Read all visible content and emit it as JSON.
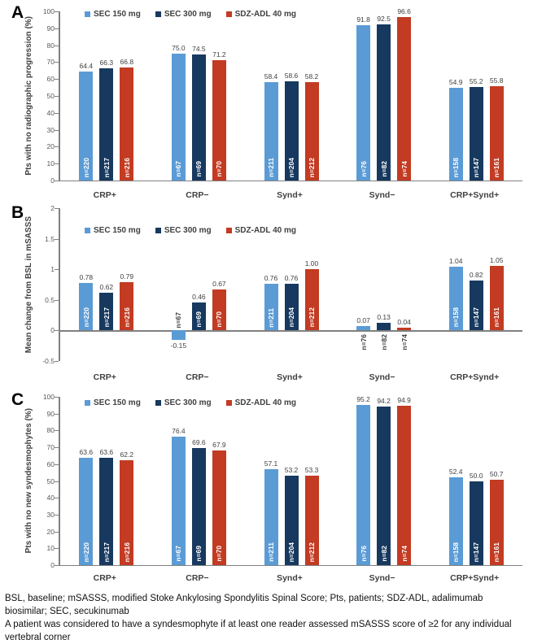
{
  "colors": {
    "sec150": "#5B9BD5",
    "sec300": "#17395F",
    "sdzadl": "#C23B22",
    "axis": "#808080",
    "label_text": "#404040",
    "tick_text": "#595959",
    "n_text_inside": "#FFFFFF"
  },
  "legend_labels": [
    "SEC 150 mg",
    "SEC 300 mg",
    "SDZ-ADL 40 mg"
  ],
  "n_labels": [
    [
      "n=220",
      "n=217",
      "n=216"
    ],
    [
      "n=67",
      "n=69",
      "n=70"
    ],
    [
      "n=211",
      "n=204",
      "n=212"
    ],
    [
      "n=76",
      "n=82",
      "n=74"
    ],
    [
      "n=158",
      "n=147",
      "n=161"
    ]
  ],
  "chart_data": [
    {
      "panel_label": "A",
      "type": "bar",
      "ylabel": "Pts with no radiographic progression (%)",
      "ylim": [
        0,
        100
      ],
      "yticks": [
        "100",
        "90",
        "80",
        "70",
        "60",
        "50",
        "40",
        "30",
        "20",
        "10",
        "0"
      ],
      "grid": false,
      "legend_position": "top-left-inside",
      "categories": [
        "CRP+",
        "CRP−",
        "Synd+",
        "Synd−",
        "CRP+Synd+"
      ],
      "series": [
        {
          "name": "SEC 150 mg",
          "color_key": "sec150",
          "values": [
            64.4,
            75.0,
            58.4,
            91.8,
            54.9
          ]
        },
        {
          "name": "SEC 300 mg",
          "color_key": "sec300",
          "values": [
            66.3,
            74.5,
            58.6,
            92.5,
            55.2
          ]
        },
        {
          "name": "SDZ-ADL 40 mg",
          "color_key": "sdzadl",
          "values": [
            66.8,
            71.2,
            58.2,
            96.6,
            55.8
          ]
        }
      ]
    },
    {
      "panel_label": "B",
      "type": "bar",
      "ylabel": "Mean change from BSL in mSASSS",
      "ylim": [
        -0.5,
        2
      ],
      "yticks": [
        "2",
        "1.5",
        "1",
        "0.5",
        "0",
        "-0.5"
      ],
      "grid": false,
      "legend_position": "top-left-inside",
      "categories": [
        "CRP+",
        "CRP−",
        "Synd+",
        "Synd−",
        "CRP+Synd+"
      ],
      "series": [
        {
          "name": "SEC 150 mg",
          "color_key": "sec150",
          "values": [
            0.78,
            -0.15,
            0.76,
            0.07,
            1.04
          ]
        },
        {
          "name": "SEC 300 mg",
          "color_key": "sec300",
          "values": [
            0.62,
            0.46,
            0.76,
            0.13,
            0.82
          ]
        },
        {
          "name": "SDZ-ADL 40 mg",
          "color_key": "sdzadl",
          "values": [
            0.79,
            0.67,
            1.0,
            0.04,
            1.05
          ]
        }
      ]
    },
    {
      "panel_label": "C",
      "type": "bar",
      "ylabel": "Pts with no new syndesmophytes (%)",
      "ylim": [
        0,
        100
      ],
      "yticks": [
        "100",
        "90",
        "80",
        "70",
        "60",
        "50",
        "40",
        "30",
        "20",
        "10",
        "0"
      ],
      "grid": false,
      "legend_position": "top-left-inside",
      "categories": [
        "CRP+",
        "CRP−",
        "Synd+",
        "Synd−",
        "CRP+Synd+"
      ],
      "series": [
        {
          "name": "SEC 150 mg",
          "color_key": "sec150",
          "values": [
            63.6,
            76.4,
            57.1,
            95.2,
            52.4
          ]
        },
        {
          "name": "SEC 300 mg",
          "color_key": "sec300",
          "values": [
            63.6,
            69.6,
            53.2,
            94.2,
            50.0
          ]
        },
        {
          "name": "SDZ-ADL 40 mg",
          "color_key": "sdzadl",
          "values": [
            62.2,
            67.9,
            53.3,
            94.9,
            50.7
          ]
        }
      ]
    }
  ],
  "footer": {
    "line1": "BSL, baseline; mSASSS, modified Stoke Ankylosing Spondylitis Spinal Score; Pts, patients; SDZ-ADL, adalimumab biosimilar; SEC, secukinumab",
    "line2": "A patient was considered to have a syndesmophyte if at least one reader assessed mSASSS score of ≥2 for any individual vertebral corner"
  }
}
